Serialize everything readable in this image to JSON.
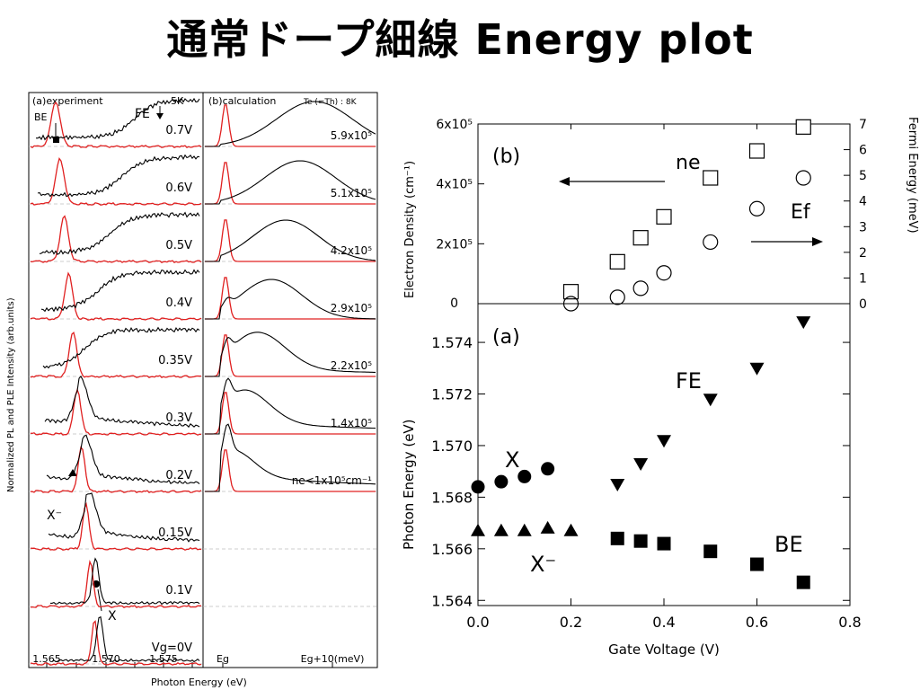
{
  "slide": {
    "title": "通常ドープ細線 Energy plot"
  },
  "left_panel": {
    "experiment_label": "(a)experiment",
    "calculation_label": "(b)calculation",
    "temperature_exp": "5K",
    "temperature_calc": "Te (=Th) : 8K",
    "ylabel": "Normalized PL and PLE Intensity (arb.units)",
    "xlabel": "Photon Energy (eV)",
    "exp_ticks": [
      "1.565",
      "1.570",
      "1.575"
    ],
    "calc_ticks": [
      "Eg",
      "Eg+10(meV)"
    ],
    "markers": {
      "BE": "BE",
      "FE": "FE",
      "X": "X",
      "Xminus": "X⁻"
    },
    "voltages": [
      "0.7V",
      "0.6V",
      "0.5V",
      "0.4V",
      "0.35V",
      "0.3V",
      "0.2V",
      "0.15V",
      "0.1V",
      "Vg=0V"
    ],
    "densities": [
      "5.9x10⁵",
      "5.1x10⁵",
      "4.2x10⁵",
      "2.9x10⁵",
      "2.2x10⁵",
      "1.4x10⁵",
      "ne<1x10⁵cm⁻¹"
    ]
  },
  "chart_data": [
    {
      "type": "scatter",
      "panel": "(b)",
      "xlabel": "Gate Voltage (V)",
      "ylabel": "Electron Density (cm⁻¹)",
      "y2label": "Fermi Energy (meV)",
      "xlim": [
        0,
        0.8
      ],
      "ylim": [
        0,
        600000
      ],
      "y2lim": [
        0,
        7
      ],
      "yticks": [
        "0",
        "2x10⁵",
        "4x10⁵",
        "6x10⁵"
      ],
      "y2ticks": [
        "0",
        "1",
        "2",
        "3",
        "4",
        "5",
        "6",
        "7"
      ],
      "annotations": {
        "ne": "ne",
        "Ef": "Ef"
      },
      "series": [
        {
          "name": "ne",
          "marker": "open-square",
          "axis": "left",
          "x": [
            0.2,
            0.3,
            0.35,
            0.4,
            0.5,
            0.6,
            0.7
          ],
          "y": [
            40000,
            140000,
            220000,
            290000,
            420000,
            510000,
            590000
          ]
        },
        {
          "name": "Ef",
          "marker": "open-circle",
          "axis": "right",
          "x": [
            0.2,
            0.3,
            0.35,
            0.4,
            0.5,
            0.6,
            0.7
          ],
          "y": [
            0.0,
            0.25,
            0.6,
            1.2,
            2.4,
            3.7,
            4.9
          ]
        }
      ]
    },
    {
      "type": "scatter",
      "panel": "(a)",
      "xlabel": "Gate Voltage (V)",
      "ylabel": "Photon Energy (eV)",
      "xlim": [
        0,
        0.8
      ],
      "ylim": [
        1.5638,
        1.5755
      ],
      "xticks": [
        "0.0",
        "0.2",
        "0.4",
        "0.6",
        "0.8"
      ],
      "yticks": [
        "1.564",
        "1.566",
        "1.568",
        "1.570",
        "1.572",
        "1.574"
      ],
      "series": [
        {
          "name": "X",
          "marker": "filled-circle",
          "x": [
            0.0,
            0.05,
            0.1,
            0.15
          ],
          "y": [
            1.5684,
            1.5686,
            1.5688,
            1.5691
          ]
        },
        {
          "name": "X⁻",
          "marker": "filled-triangle-up",
          "x": [
            0.0,
            0.05,
            0.1,
            0.15,
            0.2
          ],
          "y": [
            1.5667,
            1.5667,
            1.5667,
            1.5668,
            1.5667
          ]
        },
        {
          "name": "BE",
          "marker": "filled-square",
          "x": [
            0.3,
            0.35,
            0.4,
            0.5,
            0.6,
            0.7
          ],
          "y": [
            1.5664,
            1.5663,
            1.5662,
            1.5659,
            1.5654,
            1.5647
          ]
        },
        {
          "name": "FE",
          "marker": "filled-triangle-down",
          "x": [
            0.3,
            0.35,
            0.4,
            0.5,
            0.6,
            0.7
          ],
          "y": [
            1.5685,
            1.5693,
            1.5702,
            1.5718,
            1.573,
            1.5748
          ]
        }
      ]
    }
  ]
}
